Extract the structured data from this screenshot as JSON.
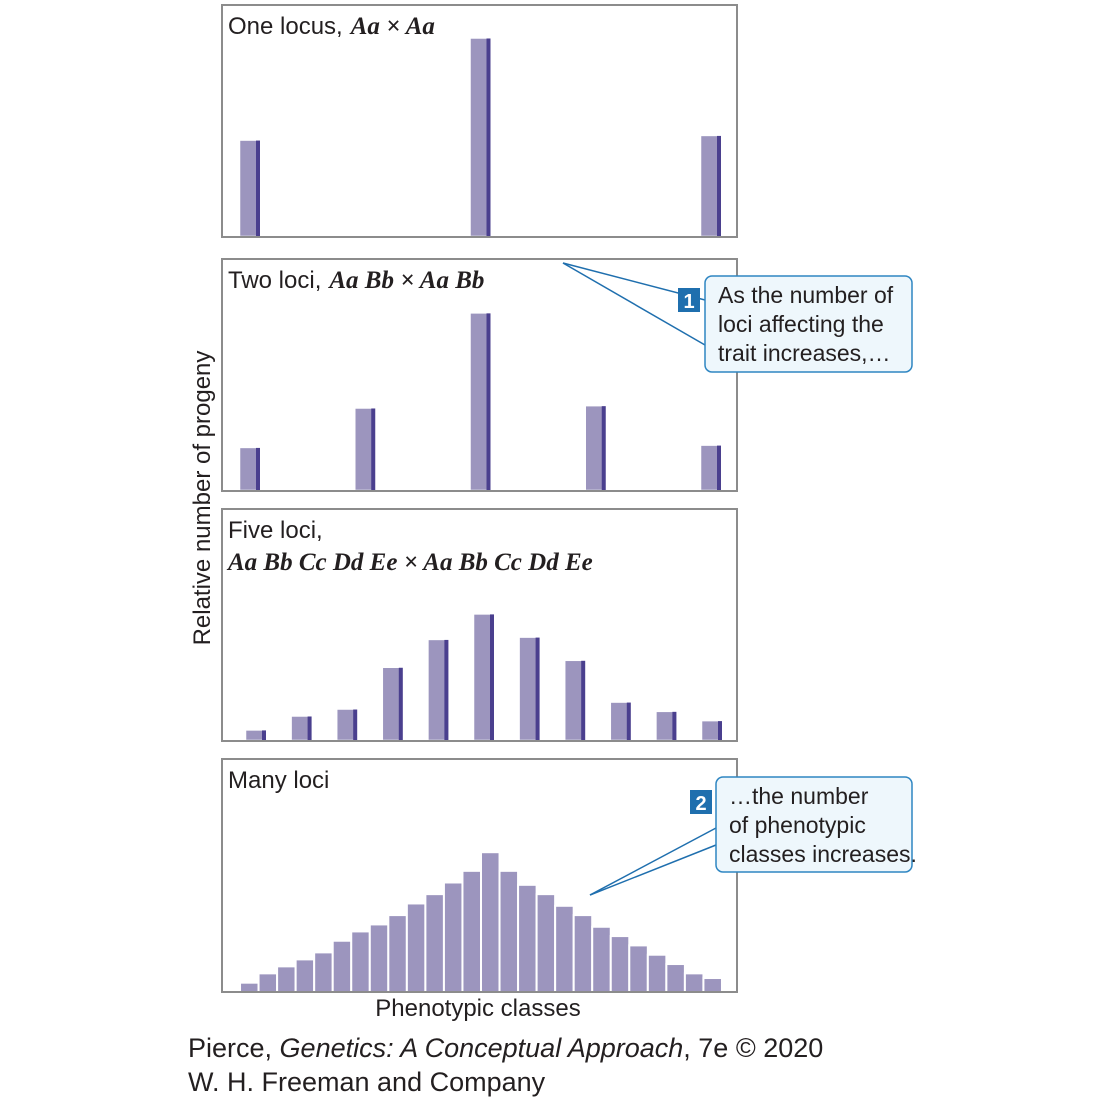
{
  "chart_data": [
    {
      "type": "bar",
      "title": "One locus,",
      "cross": "Aa × Aa",
      "categories": [
        null,
        null,
        null
      ],
      "values": [
        42,
        86,
        44
      ],
      "ylim": [
        0,
        100
      ],
      "color": "#9c95be",
      "edge_color": "#4a3f8e"
    },
    {
      "type": "bar",
      "title": "Two loci,",
      "cross": "Aa Bb × Aa Bb",
      "categories": [
        null,
        null,
        null,
        null,
        null
      ],
      "values": [
        19,
        36,
        77,
        37,
        20
      ],
      "ylim": [
        0,
        100
      ],
      "color": "#9c95be",
      "edge_color": "#4a3f8e",
      "callout": {
        "number": "1",
        "lines": [
          "As the number of",
          "loci affecting the",
          "trait increases,…"
        ]
      }
    },
    {
      "type": "bar",
      "title": "Five loci,",
      "cross": "Aa Bb Cc Dd Ee × Aa Bb Cc Dd Ee",
      "categories": [
        null,
        null,
        null,
        null,
        null,
        null,
        null,
        null,
        null,
        null,
        null
      ],
      "values": [
        5,
        11,
        14,
        32,
        44,
        55,
        45,
        35,
        17,
        13,
        9
      ],
      "ylim": [
        0,
        100
      ],
      "color": "#9c95be",
      "edge_color": "#4a3f8e"
    },
    {
      "type": "bar",
      "title": "Many loci",
      "categories": [
        null,
        null,
        null,
        null,
        null,
        null,
        null,
        null,
        null,
        null,
        null,
        null,
        null,
        null,
        null,
        null,
        null,
        null,
        null,
        null,
        null,
        null,
        null,
        null,
        null,
        null
      ],
      "values": [
        4,
        8,
        11,
        14,
        17,
        22,
        26,
        29,
        33,
        38,
        42,
        47,
        52,
        60,
        52,
        46,
        42,
        37,
        33,
        28,
        24,
        20,
        16,
        12,
        8,
        6
      ],
      "ylim": [
        0,
        100
      ],
      "color": "#9c95be",
      "callout": {
        "number": "2",
        "lines": [
          "…the number",
          "of phenotypic",
          "classes increases."
        ]
      }
    }
  ],
  "ylabel": "Relative number of progeny",
  "xlabel": "Phenotypic classes",
  "credit": {
    "author": "Pierce, ",
    "book": "Genetics: A Conceptual Approach",
    "edition": ", 7e © 2020",
    "publisher": "W. H. Freeman and Company"
  }
}
